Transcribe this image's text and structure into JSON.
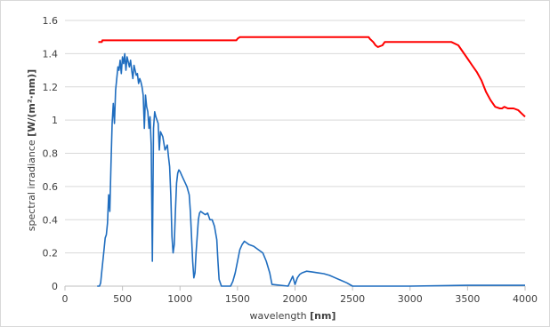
{
  "chart_data": {
    "type": "line",
    "xlabel": "wavelength",
    "xlabel_unit": "[nm]",
    "ylabel": "spectral irradiance",
    "ylabel_unit": "[W/(m²·nm)]",
    "xlim": [
      0,
      4000
    ],
    "ylim": [
      0,
      1.6
    ],
    "x_ticks": [
      0,
      500,
      1000,
      1500,
      2000,
      2500,
      3000,
      3500,
      4000
    ],
    "x_tick_labels": [
      "0",
      "500",
      "1000",
      "1500",
      "2000",
      "2500",
      "3000",
      "3500",
      "4000"
    ],
    "y_ticks": [
      0,
      0.2,
      0.4,
      0.6,
      0.8,
      1.0,
      1.2,
      1.4,
      1.6
    ],
    "y_tick_labels": [
      "0",
      "0.2",
      "0.4",
      "0.6",
      "0.8",
      "1",
      "1.2",
      "1.4",
      "1.6"
    ],
    "grid": "horizontal",
    "series": [
      {
        "color": "#ff0000",
        "points": [
          [
            290,
            1.47
          ],
          [
            320,
            1.47
          ],
          [
            325,
            1.48
          ],
          [
            500,
            1.48
          ],
          [
            1000,
            1.48
          ],
          [
            1490,
            1.48
          ],
          [
            1500,
            1.49
          ],
          [
            1520,
            1.5
          ],
          [
            2000,
            1.5
          ],
          [
            2500,
            1.5
          ],
          [
            2640,
            1.5
          ],
          [
            2650,
            1.49
          ],
          [
            2680,
            1.47
          ],
          [
            2700,
            1.45
          ],
          [
            2720,
            1.44
          ],
          [
            2760,
            1.45
          ],
          [
            2780,
            1.47
          ],
          [
            3000,
            1.47
          ],
          [
            3360,
            1.47
          ],
          [
            3420,
            1.45
          ],
          [
            3460,
            1.41
          ],
          [
            3500,
            1.37
          ],
          [
            3540,
            1.33
          ],
          [
            3580,
            1.29
          ],
          [
            3620,
            1.24
          ],
          [
            3660,
            1.17
          ],
          [
            3700,
            1.12
          ],
          [
            3740,
            1.08
          ],
          [
            3780,
            1.07
          ],
          [
            3800,
            1.07
          ],
          [
            3820,
            1.08
          ],
          [
            3850,
            1.07
          ],
          [
            3900,
            1.07
          ],
          [
            3940,
            1.06
          ],
          [
            3970,
            1.04
          ],
          [
            4000,
            1.02
          ]
        ]
      },
      {
        "color": "#1f6dbf",
        "points": [
          [
            280,
            0.0
          ],
          [
            300,
            0.0
          ],
          [
            310,
            0.02
          ],
          [
            320,
            0.09
          ],
          [
            340,
            0.22
          ],
          [
            350,
            0.29
          ],
          [
            360,
            0.31
          ],
          [
            370,
            0.38
          ],
          [
            380,
            0.55
          ],
          [
            390,
            0.45
          ],
          [
            400,
            0.73
          ],
          [
            410,
            0.98
          ],
          [
            420,
            1.1
          ],
          [
            430,
            0.98
          ],
          [
            440,
            1.18
          ],
          [
            450,
            1.25
          ],
          [
            460,
            1.32
          ],
          [
            470,
            1.3
          ],
          [
            480,
            1.36
          ],
          [
            490,
            1.28
          ],
          [
            500,
            1.38
          ],
          [
            510,
            1.34
          ],
          [
            520,
            1.4
          ],
          [
            530,
            1.3
          ],
          [
            540,
            1.38
          ],
          [
            550,
            1.35
          ],
          [
            560,
            1.32
          ],
          [
            570,
            1.36
          ],
          [
            580,
            1.3
          ],
          [
            590,
            1.25
          ],
          [
            600,
            1.33
          ],
          [
            610,
            1.3
          ],
          [
            620,
            1.27
          ],
          [
            630,
            1.28
          ],
          [
            640,
            1.22
          ],
          [
            650,
            1.25
          ],
          [
            660,
            1.23
          ],
          [
            670,
            1.2
          ],
          [
            680,
            1.15
          ],
          [
            690,
            0.95
          ],
          [
            700,
            1.15
          ],
          [
            710,
            1.08
          ],
          [
            720,
            1.05
          ],
          [
            730,
            0.95
          ],
          [
            740,
            1.02
          ],
          [
            750,
            0.85
          ],
          [
            760,
            0.15
          ],
          [
            770,
            0.95
          ],
          [
            780,
            1.05
          ],
          [
            790,
            1.02
          ],
          [
            800,
            1.0
          ],
          [
            810,
            0.98
          ],
          [
            820,
            0.82
          ],
          [
            830,
            0.93
          ],
          [
            850,
            0.9
          ],
          [
            870,
            0.82
          ],
          [
            890,
            0.85
          ],
          [
            900,
            0.78
          ],
          [
            910,
            0.72
          ],
          [
            920,
            0.55
          ],
          [
            930,
            0.3
          ],
          [
            940,
            0.2
          ],
          [
            950,
            0.25
          ],
          [
            960,
            0.45
          ],
          [
            970,
            0.62
          ],
          [
            980,
            0.68
          ],
          [
            990,
            0.7
          ],
          [
            1000,
            0.69
          ],
          [
            1020,
            0.66
          ],
          [
            1040,
            0.63
          ],
          [
            1060,
            0.6
          ],
          [
            1080,
            0.55
          ],
          [
            1090,
            0.45
          ],
          [
            1100,
            0.3
          ],
          [
            1110,
            0.15
          ],
          [
            1120,
            0.05
          ],
          [
            1130,
            0.08
          ],
          [
            1140,
            0.2
          ],
          [
            1150,
            0.3
          ],
          [
            1160,
            0.4
          ],
          [
            1170,
            0.44
          ],
          [
            1180,
            0.45
          ],
          [
            1200,
            0.44
          ],
          [
            1220,
            0.43
          ],
          [
            1240,
            0.44
          ],
          [
            1250,
            0.42
          ],
          [
            1260,
            0.4
          ],
          [
            1280,
            0.4
          ],
          [
            1300,
            0.36
          ],
          [
            1320,
            0.28
          ],
          [
            1330,
            0.15
          ],
          [
            1340,
            0.04
          ],
          [
            1360,
            0.0
          ],
          [
            1440,
            0.0
          ],
          [
            1460,
            0.03
          ],
          [
            1480,
            0.08
          ],
          [
            1500,
            0.15
          ],
          [
            1520,
            0.22
          ],
          [
            1540,
            0.25
          ],
          [
            1560,
            0.27
          ],
          [
            1580,
            0.26
          ],
          [
            1600,
            0.25
          ],
          [
            1640,
            0.24
          ],
          [
            1680,
            0.22
          ],
          [
            1720,
            0.2
          ],
          [
            1750,
            0.15
          ],
          [
            1780,
            0.08
          ],
          [
            1800,
            0.01
          ],
          [
            1940,
            0.0
          ],
          [
            1960,
            0.03
          ],
          [
            1980,
            0.06
          ],
          [
            2000,
            0.01
          ],
          [
            2020,
            0.05
          ],
          [
            2040,
            0.07
          ],
          [
            2060,
            0.08
          ],
          [
            2100,
            0.09
          ],
          [
            2150,
            0.085
          ],
          [
            2200,
            0.08
          ],
          [
            2250,
            0.075
          ],
          [
            2300,
            0.065
          ],
          [
            2350,
            0.05
          ],
          [
            2400,
            0.035
          ],
          [
            2450,
            0.02
          ],
          [
            2500,
            0.0
          ],
          [
            3000,
            0.0
          ],
          [
            3500,
            0.005
          ],
          [
            4000,
            0.005
          ]
        ]
      }
    ]
  }
}
